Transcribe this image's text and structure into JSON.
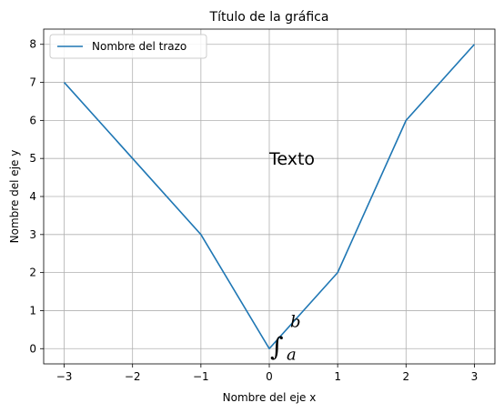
{
  "chart_data": {
    "type": "line",
    "title": "Título de la gráfica",
    "xlabel": "Nombre del eje x",
    "ylabel": "Nombre del eje y",
    "xlim": [
      -3.3,
      3.3
    ],
    "ylim": [
      -0.4,
      8.4
    ],
    "xticks": [
      -3,
      -2,
      -1,
      0,
      1,
      2,
      3
    ],
    "xtick_labels": [
      "−3",
      "−2",
      "−1",
      "0",
      "1",
      "2",
      "3"
    ],
    "yticks": [
      0,
      1,
      2,
      3,
      4,
      5,
      6,
      7,
      8
    ],
    "ytick_labels": [
      "0",
      "1",
      "2",
      "3",
      "4",
      "5",
      "6",
      "7",
      "8"
    ],
    "grid": true,
    "legend_position": "top-left",
    "series": [
      {
        "name": "Nombre del trazo",
        "color": "#1f77b4",
        "x": [
          -3,
          -1,
          0,
          1,
          2,
          3
        ],
        "y": [
          7,
          3,
          0,
          2,
          6,
          8
        ]
      }
    ],
    "annotations": [
      {
        "text": "Texto",
        "x": 0,
        "y": 5
      }
    ],
    "math_annotation": {
      "symbol": "∫",
      "upper": "b",
      "lower": "a",
      "x": 0,
      "y": 0
    }
  }
}
